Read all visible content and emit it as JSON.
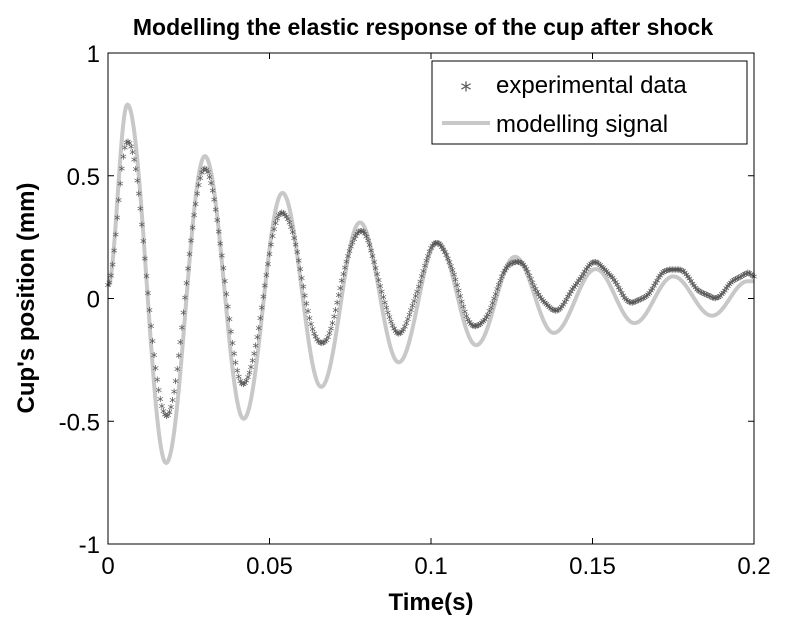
{
  "chart_data": {
    "type": "line",
    "title": "Modelling the elastic response of the cup after shock",
    "xlabel": "Time(s)",
    "ylabel": "Cup's position (mm)",
    "xlim": [
      0,
      0.2
    ],
    "ylim": [
      -1,
      1
    ],
    "xticks": [
      0,
      0.05,
      0.1,
      0.15,
      0.2
    ],
    "xtick_labels": [
      "0",
      "0.05",
      "0.1",
      "0.15",
      "0.2"
    ],
    "yticks": [
      -1,
      -0.5,
      0,
      0.5,
      1
    ],
    "ytick_labels": [
      "-1",
      "-0.5",
      "0",
      "0.5",
      "1"
    ],
    "grid": false,
    "legend_position": "top-right",
    "series": [
      {
        "name": "experimental data",
        "style": "markers",
        "marker": "*",
        "color": "#555555",
        "amplitude": 0.65,
        "offset": 0.0,
        "peaks": [
          [
            0.006,
            0.64
          ],
          [
            0.018,
            -0.48
          ],
          [
            0.03,
            0.52
          ],
          [
            0.042,
            -0.35
          ],
          [
            0.054,
            0.35
          ],
          [
            0.066,
            -0.19
          ],
          [
            0.078,
            0.27
          ],
          [
            0.09,
            -0.14
          ],
          [
            0.102,
            0.22
          ],
          [
            0.114,
            -0.12
          ],
          [
            0.126,
            0.15
          ],
          [
            0.138,
            -0.05
          ],
          [
            0.151,
            0.14
          ],
          [
            0.163,
            -0.02
          ],
          [
            0.175,
            0.12
          ],
          [
            0.187,
            0.0
          ],
          [
            0.198,
            0.1
          ]
        ],
        "start": [
          0.0,
          0.05
        ],
        "end": [
          0.2,
          0.08
        ]
      },
      {
        "name": "modelling signal",
        "style": "line",
        "color": "#c8c8c8",
        "peaks": [
          [
            0.006,
            0.79
          ],
          [
            0.018,
            -0.67
          ],
          [
            0.03,
            0.58
          ],
          [
            0.042,
            -0.49
          ],
          [
            0.054,
            0.43
          ],
          [
            0.066,
            -0.36
          ],
          [
            0.078,
            0.31
          ],
          [
            0.09,
            -0.26
          ],
          [
            0.102,
            0.23
          ],
          [
            0.114,
            -0.19
          ],
          [
            0.126,
            0.17
          ],
          [
            0.138,
            -0.14
          ],
          [
            0.151,
            0.12
          ],
          [
            0.163,
            -0.1
          ],
          [
            0.175,
            0.09
          ],
          [
            0.187,
            -0.07
          ],
          [
            0.198,
            0.07
          ]
        ],
        "start": [
          0.0,
          0.05
        ],
        "end": [
          0.2,
          0.07
        ]
      }
    ]
  }
}
